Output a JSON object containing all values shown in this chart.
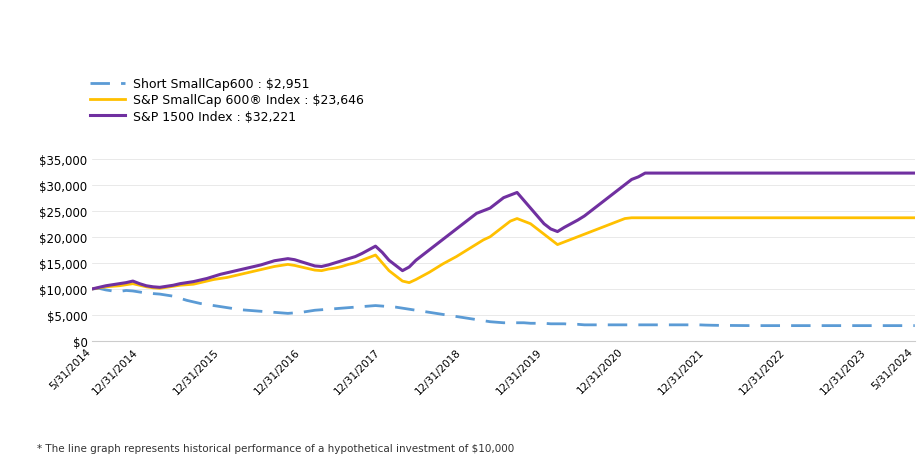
{
  "x_labels": [
    "5/31/2014",
    "12/31/2014",
    "12/31/2015",
    "12/31/2016",
    "12/31/2017",
    "12/31/2018",
    "12/31/2019",
    "12/31/2020",
    "12/31/2021",
    "12/31/2022",
    "12/31/2023",
    "5/31/2024"
  ],
  "x_indices": [
    0,
    7,
    19,
    31,
    43,
    55,
    67,
    79,
    91,
    103,
    115,
    122
  ],
  "short_smallcap": [
    10000,
    10100,
    9800,
    9600,
    9500,
    9700,
    9600,
    9400,
    9200,
    9100,
    9000,
    8800,
    8600,
    8200,
    7800,
    7500,
    7200,
    7000,
    6800,
    6600,
    6400,
    6200,
    6000,
    5900,
    5800,
    5700,
    5600,
    5500,
    5400,
    5300,
    5400,
    5500,
    5700,
    5900,
    6000,
    6100,
    6200,
    6300,
    6400,
    6500,
    6600,
    6700,
    6800,
    6700,
    6600,
    6500,
    6300,
    6100,
    5900,
    5700,
    5500,
    5300,
    5100,
    4900,
    4700,
    4500,
    4300,
    4100,
    3900,
    3700,
    3600,
    3500,
    3500,
    3500,
    3500,
    3400,
    3400,
    3400,
    3300,
    3300,
    3300,
    3200,
    3200,
    3100,
    3100,
    3100,
    3100,
    3100,
    3100,
    3100,
    3100,
    3100,
    3100,
    3100,
    3100,
    3100,
    3100,
    3100,
    3100,
    3100,
    3100,
    3050,
    3020,
    3000,
    2990,
    2980,
    2970,
    2960,
    2955,
    2952,
    2951,
    2951,
    2951,
    2951,
    2951,
    2951,
    2951,
    2951,
    2951,
    2951,
    2951,
    2951,
    2951,
    2951,
    2951,
    2951,
    2951,
    2951,
    2951,
    2951,
    2951,
    2951,
    2951
  ],
  "sp_smallcap": [
    10000,
    10200,
    10400,
    10500,
    10600,
    10800,
    11000,
    10700,
    10400,
    10200,
    10100,
    10300,
    10500,
    10700,
    10800,
    10900,
    11200,
    11500,
    11800,
    12000,
    12200,
    12500,
    12800,
    13100,
    13400,
    13700,
    14000,
    14300,
    14500,
    14700,
    14500,
    14200,
    13900,
    13600,
    13500,
    13800,
    14000,
    14300,
    14700,
    15000,
    15500,
    16000,
    16500,
    15000,
    13500,
    12500,
    11500,
    11200,
    11800,
    12500,
    13200,
    14000,
    14800,
    15500,
    16200,
    17000,
    17800,
    18600,
    19400,
    20000,
    21000,
    22000,
    23000,
    23500,
    23000,
    22500,
    21500,
    20500,
    19500,
    18500,
    19000,
    19500,
    20000,
    20500,
    21000,
    21500,
    22000,
    22500,
    23000,
    23500,
    23646,
    23646,
    23646,
    23646,
    23646,
    23646,
    23646,
    23646,
    23646,
    23646,
    23646,
    23646,
    23646,
    23646,
    23646,
    23646,
    23646,
    23646,
    23646,
    23646,
    23646,
    23646,
    23646,
    23646,
    23646,
    23646,
    23646,
    23646,
    23646,
    23646,
    23646,
    23646,
    23646,
    23646,
    23646,
    23646,
    23646,
    23646,
    23646,
    23646,
    23646,
    23646,
    23646
  ],
  "sp_1500": [
    10000,
    10300,
    10600,
    10800,
    11000,
    11200,
    11500,
    11000,
    10600,
    10400,
    10300,
    10500,
    10700,
    11000,
    11200,
    11400,
    11700,
    12000,
    12400,
    12800,
    13100,
    13400,
    13700,
    14000,
    14300,
    14600,
    15000,
    15400,
    15600,
    15800,
    15600,
    15200,
    14800,
    14400,
    14300,
    14600,
    15000,
    15400,
    15800,
    16200,
    16800,
    17500,
    18200,
    17000,
    15500,
    14500,
    13500,
    14200,
    15500,
    16500,
    17500,
    18500,
    19500,
    20500,
    21500,
    22500,
    23500,
    24500,
    25000,
    25500,
    26500,
    27500,
    28000,
    28500,
    27000,
    25500,
    24000,
    22500,
    21500,
    21000,
    21800,
    22500,
    23200,
    24000,
    25000,
    26000,
    27000,
    28000,
    29000,
    30000,
    31000,
    31500,
    32221,
    32221,
    32221,
    32221,
    32221,
    32221,
    32221,
    32221,
    32221,
    32221,
    32221,
    32221,
    32221,
    32221,
    32221,
    32221,
    32221,
    32221,
    32221,
    32221,
    32221,
    32221,
    32221,
    32221,
    32221,
    32221,
    32221,
    32221,
    32221,
    32221,
    32221,
    32221,
    32221,
    32221,
    32221,
    32221,
    32221,
    32221,
    32221,
    32221,
    32221
  ],
  "legend_labels": [
    "Short SmallCap600 : $2,951",
    "S&P SmallCap 600® Index : $23,646",
    "S&P 1500 Index : $32,221"
  ],
  "line_colors": [
    "#5B9BD5",
    "#FFC000",
    "#7030A0"
  ],
  "ylim": [
    0,
    35000
  ],
  "yticks": [
    0,
    5000,
    10000,
    15000,
    20000,
    25000,
    30000,
    35000
  ],
  "footnote": "* The line graph represents historical performance of a hypothetical investment of $10,000",
  "background_color": "#FFFFFF"
}
